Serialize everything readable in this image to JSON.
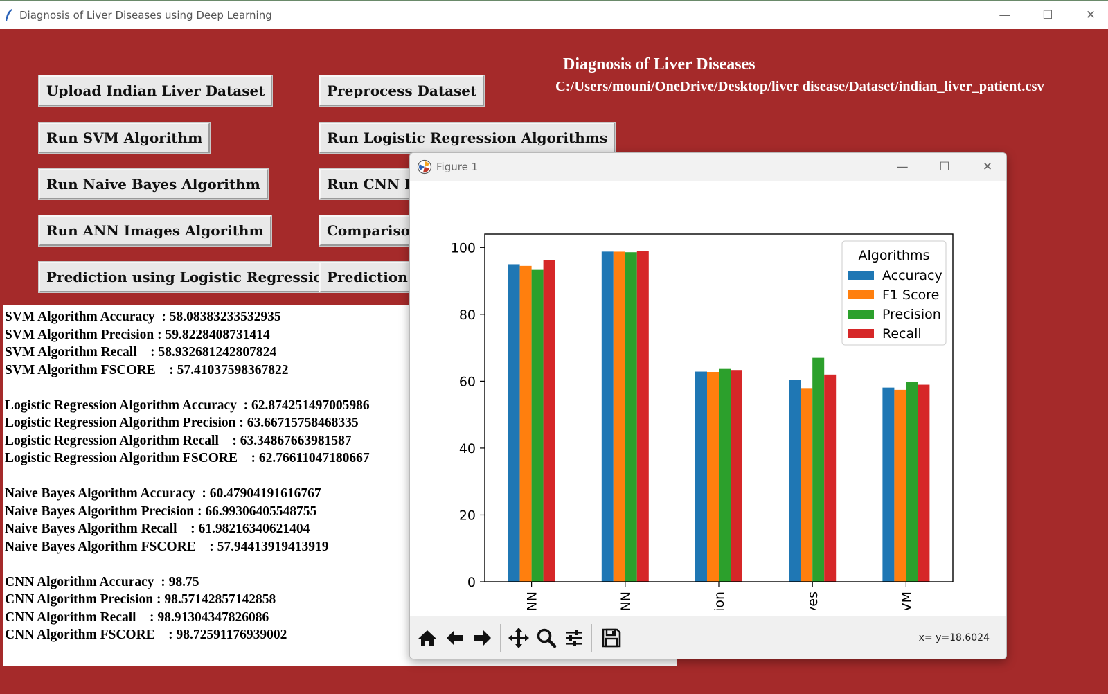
{
  "window": {
    "title": "Diagnosis of Liver Diseases using Deep Learning",
    "minimize_glyph": "—",
    "maximize_glyph": "☐",
    "close_glyph": "✕"
  },
  "heading": {
    "title": "Diagnosis of Liver Diseases",
    "path": "C:/Users/mouni/OneDrive/Desktop/liver disease/Dataset/indian_liver_patient.csv"
  },
  "buttons": {
    "upload": "Upload Indian Liver Dataset",
    "preprocess": "Preprocess Dataset",
    "svm": "Run SVM Algorithm",
    "logistic": "Run Logistic Regression Algorithms",
    "naive_bayes": "Run Naive Bayes Algorithm",
    "cnn": "Run CNN Images Algorithm",
    "ann": "Run ANN Images Algorithm",
    "comparison": "Comparison Graph",
    "predict_lr": "Prediction using Logistic Regression",
    "predict_cnn": "Prediction using CNN"
  },
  "output_lines": [
    "SVM Algorithm Accuracy  : 58.08383233532935",
    "SVM Algorithm Precision : 59.8228408731414",
    "SVM Algorithm Recall    : 58.932681242807824",
    "SVM Algorithm FSCORE    : 57.41037598367822",
    "",
    "Logistic Regression Algorithm Accuracy  : 62.874251497005986",
    "Logistic Regression Algorithm Precision : 63.66715758468335",
    "Logistic Regression Algorithm Recall    : 63.34867663981587",
    "Logistic Regression Algorithm FSCORE    : 62.76611047180667",
    "",
    "Naive Bayes Algorithm Accuracy  : 60.47904191616767",
    "Naive Bayes Algorithm Precision : 66.99306405548755",
    "Naive Bayes Algorithm Recall    : 61.98216340621404",
    "Naive Bayes Algorithm FSCORE    : 57.94413919413919",
    "",
    "CNN Algorithm Accuracy  : 98.75",
    "CNN Algorithm Precision : 98.57142857142858",
    "CNN Algorithm Recall    : 98.91304347826086",
    "CNN Algorithm FSCORE    : 98.72591176939002"
  ],
  "figure": {
    "title": "Figure 1",
    "coord_readout": "x= y=18.6024",
    "toolbar_icons": [
      "home-icon",
      "back-arrow-icon",
      "forward-arrow-icon",
      "pan-icon",
      "zoom-icon",
      "configure-icon",
      "save-icon"
    ]
  },
  "chart_data": {
    "type": "bar",
    "categories": [
      "ANN",
      "CNN",
      "Logistic Regression",
      "Naive Bayes",
      "SVM"
    ],
    "tick_labels": [
      "ANN",
      "CNN",
      "ession",
      "Bayes",
      "SVM"
    ],
    "series": [
      {
        "name": "Accuracy",
        "color": "#1f77b4",
        "values": [
          95.0,
          98.75,
          62.87,
          60.48,
          58.08
        ]
      },
      {
        "name": "F1 Score",
        "color": "#ff7f0e",
        "values": [
          94.5,
          98.73,
          62.77,
          57.94,
          57.41
        ]
      },
      {
        "name": "Precision",
        "color": "#2ca02c",
        "values": [
          93.3,
          98.57,
          63.67,
          66.99,
          59.82
        ]
      },
      {
        "name": "Recall",
        "color": "#d62728",
        "values": [
          96.2,
          98.91,
          63.35,
          61.98,
          58.93
        ]
      }
    ],
    "yticks": [
      0,
      20,
      40,
      60,
      80,
      100
    ],
    "ylim": [
      0,
      104
    ],
    "legend_title": "Algorithms",
    "legend_position": "top-right",
    "xlabel": "",
    "ylabel": "",
    "grid": false
  }
}
